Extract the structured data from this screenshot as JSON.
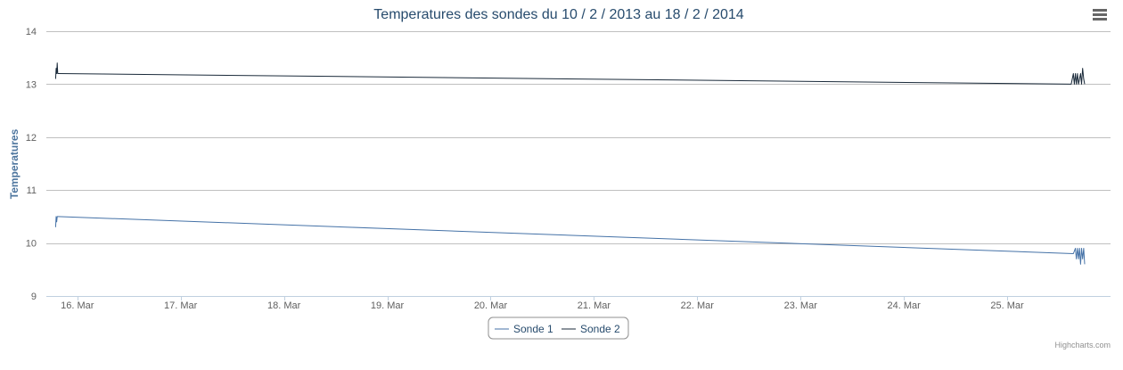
{
  "chart_data": {
    "type": "line",
    "title": "Temperatures des sondes du 10 / 2 / 2013 au 18 / 2 / 2014",
    "ylabel": "Temperatures",
    "xlabel": "",
    "ylim": [
      9,
      14
    ],
    "y_ticks": [
      "9",
      "10",
      "11",
      "12",
      "13",
      "14"
    ],
    "xlim": [
      15.7,
      26.0
    ],
    "x_ticks": [
      {
        "value": 16,
        "label": "16. Mar"
      },
      {
        "value": 17,
        "label": "17. Mar"
      },
      {
        "value": 18,
        "label": "18. Mar"
      },
      {
        "value": 19,
        "label": "19. Mar"
      },
      {
        "value": 20,
        "label": "20. Mar"
      },
      {
        "value": 21,
        "label": "21. Mar"
      },
      {
        "value": 22,
        "label": "22. Mar"
      },
      {
        "value": 23,
        "label": "23. Mar"
      },
      {
        "value": 24,
        "label": "24. Mar"
      },
      {
        "value": 25,
        "label": "25. Mar"
      }
    ],
    "grid": "horizontal",
    "legend_position": "bottom-center",
    "series": [
      {
        "name": "Sonde 1",
        "color": "#4572a7",
        "points": [
          [
            15.79,
            10.3
          ],
          [
            15.795,
            10.5
          ],
          [
            15.8,
            10.4
          ],
          [
            15.805,
            10.5
          ],
          [
            15.81,
            10.5
          ],
          [
            25.64,
            9.8
          ],
          [
            25.66,
            9.9
          ],
          [
            25.67,
            9.7
          ],
          [
            25.68,
            9.9
          ],
          [
            25.69,
            9.7
          ],
          [
            25.7,
            9.9
          ],
          [
            25.71,
            9.6
          ],
          [
            25.72,
            9.9
          ],
          [
            25.73,
            9.7
          ],
          [
            25.74,
            9.9
          ],
          [
            25.75,
            9.6
          ]
        ]
      },
      {
        "name": "Sonde 2",
        "color": "#1a2a3a",
        "points": [
          [
            15.79,
            13.1
          ],
          [
            15.795,
            13.3
          ],
          [
            15.8,
            13.2
          ],
          [
            15.805,
            13.4
          ],
          [
            15.81,
            13.2
          ],
          [
            15.82,
            13.2
          ],
          [
            25.62,
            13.0
          ],
          [
            25.64,
            13.2
          ],
          [
            25.65,
            13.0
          ],
          [
            25.66,
            13.2
          ],
          [
            25.67,
            13.0
          ],
          [
            25.68,
            13.2
          ],
          [
            25.69,
            13.0
          ],
          [
            25.71,
            13.2
          ],
          [
            25.72,
            13.0
          ],
          [
            25.73,
            13.3
          ],
          [
            25.74,
            13.1
          ],
          [
            25.75,
            13.0
          ]
        ]
      }
    ]
  },
  "legend": {
    "items": [
      "Sonde 1",
      "Sonde 2"
    ]
  },
  "credits": "Highcharts.com",
  "menu": {
    "icon": "hamburger-menu-icon"
  }
}
